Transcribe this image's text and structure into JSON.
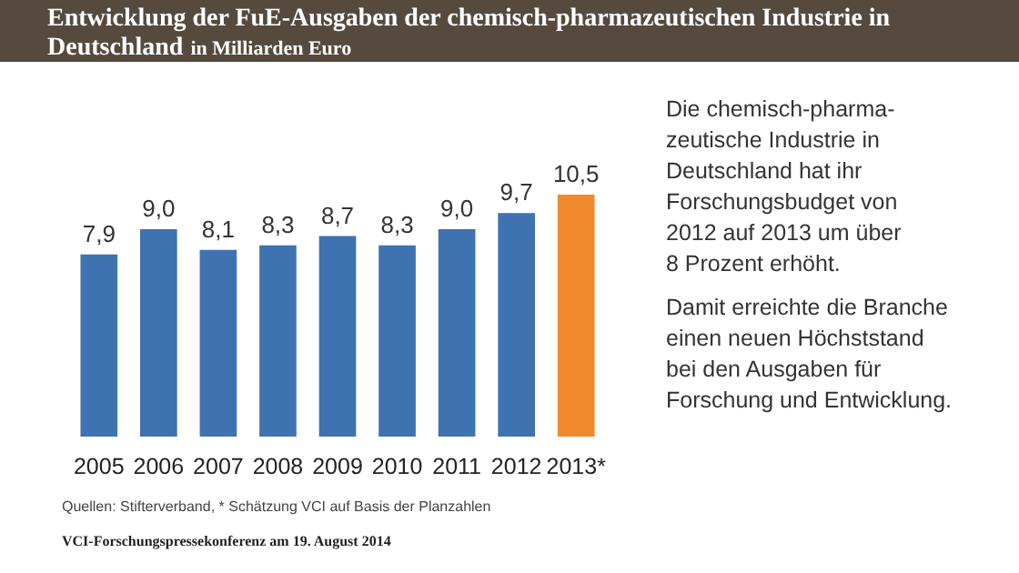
{
  "chart_data": {
    "type": "bar",
    "title": "Entwicklung der FuE-Ausgaben der chemisch-pharmazeutischen Industrie in Deutschland",
    "subtitle": "in Milliarden Euro",
    "categories": [
      "2005",
      "2006",
      "2007",
      "2008",
      "2009",
      "2010",
      "2011",
      "2012",
      "2013*"
    ],
    "values": [
      7.9,
      9.0,
      8.1,
      8.3,
      8.7,
      8.3,
      9.0,
      9.7,
      10.5
    ],
    "colors": [
      "#3f72b0",
      "#3f72b0",
      "#3f72b0",
      "#3f72b0",
      "#3f72b0",
      "#3f72b0",
      "#3f72b0",
      "#3f72b0",
      "#f08a2c"
    ],
    "value_labels": [
      "7,9",
      "9,0",
      "8,1",
      "8,3",
      "8,7",
      "8,3",
      "9,0",
      "9,7",
      "10,5"
    ],
    "annotations": [
      "Die chemisch-pharma-\nzeutische Industrie in\nDeutschland hat ihr\nForschungsbudget von\n2012 auf 2013 um über\n8 Prozent erhöht.",
      "Damit erreichte die Branche\neinen neuen Höchststand\nbei den Ausgaben für\nForschung und Entwicklung.",
      "Quellen: Stifterverband, * Schätzung VCI auf Basis der Planzahlen",
      "VCI-Forschungspressekonferenz am 19. August 2014"
    ]
  }
}
